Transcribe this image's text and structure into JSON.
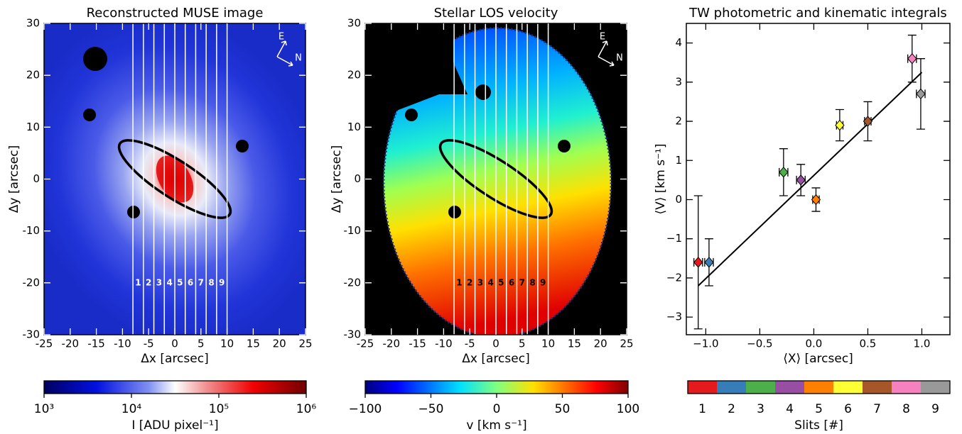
{
  "chart_data": [
    {
      "type": "image",
      "title": "Reconstructed MUSE image",
      "xlabel": "Δx  [arcsec]",
      "ylabel": "Δy  [arcsec]",
      "xlim": [
        -25,
        25
      ],
      "ylim": [
        -30,
        30
      ],
      "xticks": [
        -25,
        -20,
        -15,
        -10,
        -5,
        0,
        5,
        10,
        15,
        20,
        25
      ],
      "yticks": [
        -30,
        -20,
        -10,
        0,
        10,
        20,
        30
      ],
      "slit_labels": [
        "1",
        "2",
        "3",
        "4",
        "5",
        "6",
        "7",
        "8",
        "9"
      ],
      "slit_edges": [
        -8,
        -6,
        -4,
        -2,
        0,
        2,
        4,
        6,
        8,
        10
      ],
      "compass": [
        "E",
        "N"
      ],
      "colorbar": {
        "label": "I [ADU pixel⁻¹]",
        "log": true,
        "lim": [
          1000,
          1000000
        ],
        "ticks": [
          {
            "value": 1000,
            "label": "10³"
          },
          {
            "value": 10000,
            "label": "10⁴"
          },
          {
            "value": 100000,
            "label": "10⁵"
          },
          {
            "value": 1000000,
            "label": "10⁶"
          }
        ]
      }
    },
    {
      "type": "image",
      "title": "Stellar LOS velocity",
      "xlabel": "Δx  [arcsec]",
      "ylabel": "Δy  [arcsec]",
      "xlim": [
        -25,
        25
      ],
      "ylim": [
        -30,
        30
      ],
      "xticks": [
        -25,
        -20,
        -15,
        -10,
        -5,
        0,
        5,
        10,
        15,
        20,
        25
      ],
      "yticks": [
        -30,
        -20,
        -10,
        0,
        10,
        20,
        30
      ],
      "slit_labels": [
        "1",
        "2",
        "3",
        "4",
        "5",
        "6",
        "7",
        "8",
        "9"
      ],
      "slit_edges": [
        -8,
        -6,
        -4,
        -2,
        0,
        2,
        4,
        6,
        8,
        10
      ],
      "compass": [
        "E",
        "N"
      ],
      "colorbar": {
        "label": "v [km s⁻¹]",
        "log": false,
        "lim": [
          -100,
          100
        ],
        "ticks": [
          {
            "value": -100,
            "label": "−100"
          },
          {
            "value": -50,
            "label": "−50"
          },
          0,
          50,
          100
        ]
      }
    },
    {
      "type": "scatter",
      "title": "TW photometric and kinematic integrals",
      "xlabel": "⟨X⟩ [arcsec]",
      "ylabel": "⟨V⟩ [km s⁻¹]",
      "xlim": [
        -1.18,
        1.26
      ],
      "ylim": [
        -3.45,
        4.5
      ],
      "xticks": [
        {
          "value": -1,
          "label": "−1.0"
        },
        {
          "value": -0.5,
          "label": "−0.5"
        },
        {
          "value": 0,
          "label": "0.0"
        },
        {
          "value": 0.5,
          "label": "0.5"
        },
        {
          "value": 1,
          "label": "1.0"
        }
      ],
      "yticks": [
        {
          "value": -3,
          "label": "−3"
        },
        {
          "value": -2,
          "label": "−2"
        },
        {
          "value": -1,
          "label": "−1"
        },
        0,
        1,
        2,
        3,
        4
      ],
      "x": [
        -1.07,
        -0.97,
        -0.28,
        -0.12,
        0.02,
        0.24,
        0.5,
        0.91,
        0.99
      ],
      "values": [
        -1.6,
        -1.6,
        0.7,
        0.5,
        0.0,
        1.9,
        2.0,
        3.6,
        2.7
      ],
      "x_err": [
        0.04,
        0.04,
        0.04,
        0.04,
        0.03,
        0.03,
        0.03,
        0.04,
        0.04
      ],
      "y_err": [
        1.7,
        0.6,
        0.6,
        0.4,
        0.3,
        0.4,
        0.5,
        0.6,
        0.9
      ],
      "fit": {
        "x": [
          -1.07,
          1.0
        ],
        "y": [
          -2.2,
          3.25
        ]
      },
      "colorbar": {
        "label": "Slits [#]",
        "categories": [
          "1",
          "2",
          "3",
          "4",
          "5",
          "6",
          "7",
          "8",
          "9"
        ],
        "colors": [
          "#e41a1c",
          "#377eb8",
          "#4daf4a",
          "#984ea3",
          "#ff7f00",
          "#ffff33",
          "#a65628",
          "#f781bf",
          "#999999"
        ]
      }
    }
  ]
}
